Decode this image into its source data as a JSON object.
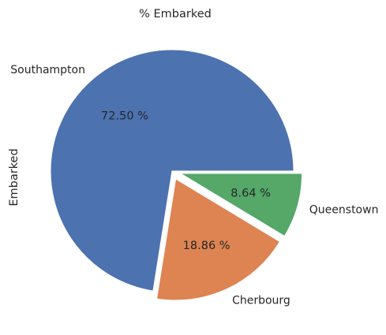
{
  "chart_data": {
    "type": "pie",
    "title": "% Embarked",
    "ylabel": "Embarked",
    "categories": [
      "Southampton",
      "Cherbourg",
      "Queenstown"
    ],
    "values": [
      72.5,
      18.86,
      8.64
    ],
    "value_labels": [
      "72.50 %",
      "18.86 %",
      "8.64 %"
    ],
    "exploded": [
      false,
      true,
      true
    ],
    "colors": [
      "#4c72b0",
      "#dd8452",
      "#55a868"
    ],
    "legend": "none"
  }
}
